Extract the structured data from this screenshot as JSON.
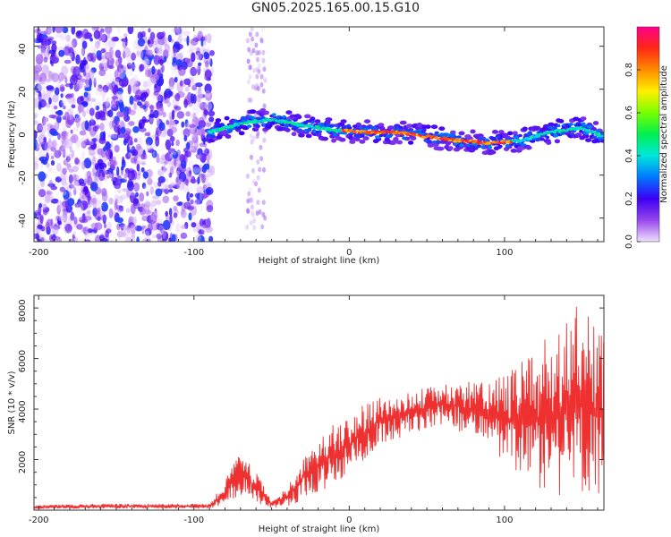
{
  "title": "GN05.2025.165.00.15.G10",
  "chart_data": [
    {
      "type": "heatmap",
      "xlabel": "Height of straight line (km)",
      "ylabel": "Frequency (Hz)",
      "xlim": [
        -203,
        164
      ],
      "ylim": [
        -51,
        49
      ],
      "xticks": [
        -200,
        -100,
        0,
        100
      ],
      "yticks": [
        -40,
        -20,
        0,
        20,
        40
      ],
      "colorbar": {
        "label": "Normalized spectral amplitude",
        "range": [
          0,
          1
        ],
        "ticks": [
          0.0,
          0.2,
          0.4,
          0.6,
          0.8
        ]
      },
      "ridge": [
        {
          "x": -90,
          "y": 0
        },
        {
          "x": -70,
          "y": 4
        },
        {
          "x": -50,
          "y": 6
        },
        {
          "x": -30,
          "y": 3
        },
        {
          "x": -10,
          "y": 1
        },
        {
          "x": 10,
          "y": 0
        },
        {
          "x": 30,
          "y": 0
        },
        {
          "x": 50,
          "y": -2
        },
        {
          "x": 70,
          "y": -4
        },
        {
          "x": 90,
          "y": -5
        },
        {
          "x": 110,
          "y": -4
        },
        {
          "x": 130,
          "y": 0
        },
        {
          "x": 150,
          "y": 2
        },
        {
          "x": 164,
          "y": -2
        }
      ],
      "noise_region": {
        "x_from": -203,
        "x_to": -88,
        "y_from": -51,
        "y_to": 49
      }
    },
    {
      "type": "line",
      "xlabel": "Height of straight line (km)",
      "ylabel": "SNR (10 * v/v)",
      "xlim": [
        -203,
        164
      ],
      "ylim": [
        0,
        8500
      ],
      "xticks": [
        -200,
        -100,
        0,
        100
      ],
      "yticks": [
        2000,
        4000,
        6000,
        8000
      ],
      "series": [
        {
          "color": "#ee3030",
          "envelope": [
            {
              "x": -203,
              "low": 50,
              "high": 200
            },
            {
              "x": -160,
              "low": 60,
              "high": 250
            },
            {
              "x": -120,
              "low": 60,
              "high": 250
            },
            {
              "x": -90,
              "low": 60,
              "high": 250
            },
            {
              "x": -80,
              "low": 200,
              "high": 1200
            },
            {
              "x": -70,
              "low": 600,
              "high": 2400
            },
            {
              "x": -60,
              "low": 300,
              "high": 1500
            },
            {
              "x": -50,
              "low": 80,
              "high": 400
            },
            {
              "x": -40,
              "low": 150,
              "high": 900
            },
            {
              "x": -30,
              "low": 300,
              "high": 2200
            },
            {
              "x": -20,
              "low": 700,
              "high": 2800
            },
            {
              "x": -10,
              "low": 1000,
              "high": 3400
            },
            {
              "x": 0,
              "low": 1400,
              "high": 3800
            },
            {
              "x": 10,
              "low": 2000,
              "high": 4200
            },
            {
              "x": 20,
              "low": 2600,
              "high": 4500
            },
            {
              "x": 40,
              "low": 3000,
              "high": 4700
            },
            {
              "x": 60,
              "low": 3400,
              "high": 5000
            },
            {
              "x": 80,
              "low": 2800,
              "high": 5200
            },
            {
              "x": 90,
              "low": 2500,
              "high": 5000
            },
            {
              "x": 100,
              "low": 1800,
              "high": 5400
            },
            {
              "x": 110,
              "low": 1300,
              "high": 5800
            },
            {
              "x": 120,
              "low": 900,
              "high": 6400
            },
            {
              "x": 130,
              "low": 600,
              "high": 7000
            },
            {
              "x": 140,
              "low": 400,
              "high": 7500
            },
            {
              "x": 150,
              "low": 300,
              "high": 8400
            },
            {
              "x": 164,
              "low": 300,
              "high": 7000
            }
          ]
        }
      ]
    }
  ]
}
